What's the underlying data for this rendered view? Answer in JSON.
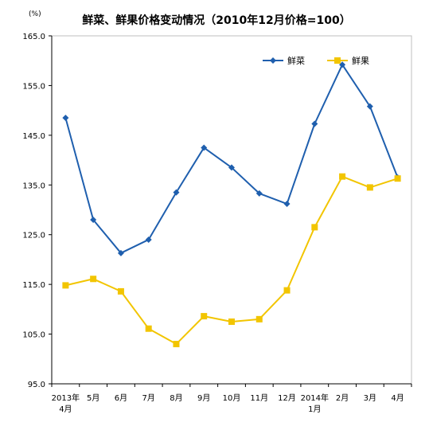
{
  "chart_data": {
    "type": "line",
    "title": "鲜菜、鲜果价格变动情况（2010年12月价格=100）",
    "unit_label": "(%)",
    "categories": [
      [
        "2013年",
        "4月"
      ],
      [
        "5月"
      ],
      [
        "6月"
      ],
      [
        "7月"
      ],
      [
        "8月"
      ],
      [
        "9月"
      ],
      [
        "10月"
      ],
      [
        "11月"
      ],
      [
        "12月"
      ],
      [
        "2014年",
        "1月"
      ],
      [
        "2月"
      ],
      [
        "3月"
      ],
      [
        "4月"
      ]
    ],
    "y_ticks": [
      "165.0",
      "155.0",
      "145.0",
      "135.0",
      "125.0",
      "115.0",
      "105.0",
      "95.0"
    ],
    "ylim": [
      95,
      165
    ],
    "grid": false,
    "legend_position": "top-right",
    "series": [
      {
        "name": "鲜菜",
        "color": "#1f5fae",
        "marker": "diamond",
        "values": [
          148.5,
          128.0,
          121.3,
          124.0,
          133.5,
          142.5,
          138.5,
          133.3,
          131.2,
          147.3,
          159.2,
          150.8,
          136.5
        ]
      },
      {
        "name": "鲜果",
        "color": "#f2c500",
        "marker": "square",
        "values": [
          114.8,
          116.1,
          113.6,
          106.1,
          103.0,
          108.6,
          107.5,
          108.0,
          113.8,
          126.5,
          136.7,
          134.5,
          136.3
        ]
      }
    ]
  }
}
